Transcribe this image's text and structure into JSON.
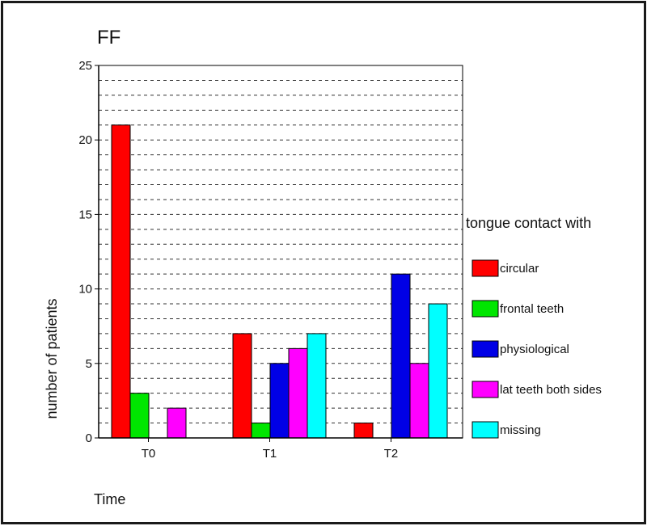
{
  "chart_data": {
    "type": "bar",
    "title": "FF",
    "xlabel": "Time",
    "ylabel": "number of patients",
    "ylim": [
      0,
      25
    ],
    "yticks": [
      0,
      5,
      10,
      15,
      20,
      25
    ],
    "grid": true,
    "legend_placement": "right",
    "legend_title": "tongue contact with",
    "categories": [
      "T0",
      "T1",
      "T2"
    ],
    "series": [
      {
        "name": "circular",
        "color": "#ff0000",
        "values": [
          21,
          7,
          1
        ]
      },
      {
        "name": "frontal teeth",
        "color": "#00e600",
        "values": [
          3,
          1,
          0
        ]
      },
      {
        "name": "physiological",
        "color": "#0000e6",
        "values": [
          0,
          5,
          11
        ]
      },
      {
        "name": "lat teeth both sides",
        "color": "#ff00ff",
        "values": [
          2,
          6,
          5
        ]
      },
      {
        "name": "missing",
        "color": "#00ffff",
        "values": [
          0,
          7,
          9
        ]
      }
    ]
  }
}
